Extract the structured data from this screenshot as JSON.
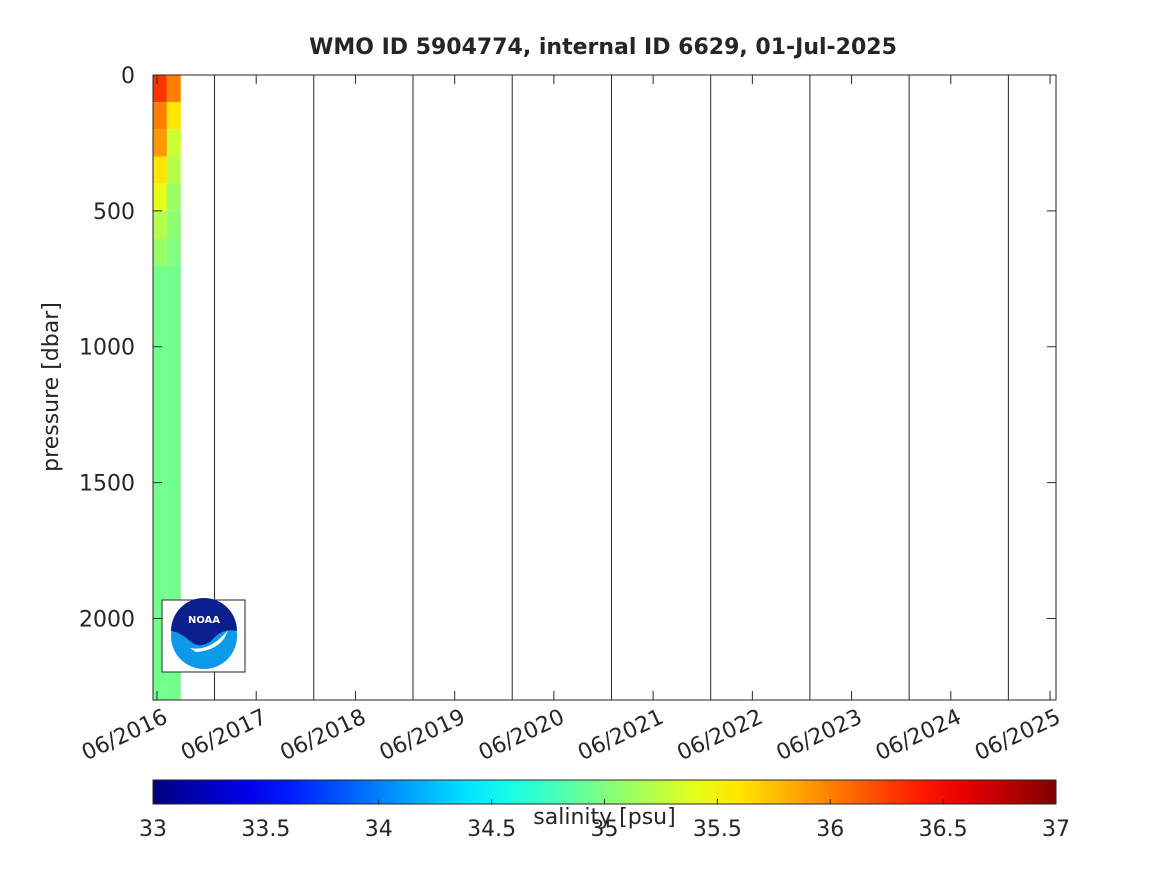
{
  "chart_data": {
    "type": "section",
    "title": "WMO ID 5904774, internal ID 6629, 01-Jul-2025",
    "ylabel": "pressure [dbar]",
    "colorbar_label": "salinity [psu]",
    "logo_text": "NOAA",
    "colormap": "jet",
    "y_reversed": true,
    "xlim": [
      2016.38,
      2025.48
    ],
    "xticks": [
      {
        "value": 2016.42,
        "label": "06/2016"
      },
      {
        "value": 2017.42,
        "label": "06/2017"
      },
      {
        "value": 2018.42,
        "label": "06/2018"
      },
      {
        "value": 2019.42,
        "label": "06/2019"
      },
      {
        "value": 2020.42,
        "label": "06/2020"
      },
      {
        "value": 2021.42,
        "label": "06/2021"
      },
      {
        "value": 2022.42,
        "label": "06/2022"
      },
      {
        "value": 2023.42,
        "label": "06/2023"
      },
      {
        "value": 2024.42,
        "label": "06/2024"
      },
      {
        "value": 2025.42,
        "label": "06/2025"
      }
    ],
    "year_lines": [
      2017,
      2018,
      2019,
      2020,
      2021,
      2022,
      2023,
      2024,
      2025
    ],
    "ylim": [
      0,
      2300
    ],
    "yticks": [
      0,
      500,
      1000,
      1500,
      2000
    ],
    "x_edges": [
      2016.38,
      2016.52,
      2016.66
    ],
    "depth_edges": [
      0,
      100,
      200,
      300,
      400,
      500,
      600,
      700,
      2300
    ],
    "salinity": [
      [
        36.3,
        36.0,
        35.9,
        35.6,
        35.4,
        35.2,
        35.1,
        34.95
      ],
      [
        36.0,
        35.6,
        35.3,
        35.2,
        35.1,
        35.05,
        35.0,
        34.95
      ]
    ],
    "clim": [
      33,
      37
    ],
    "cticks": [
      33,
      33.5,
      34,
      34.5,
      35,
      35.5,
      36,
      36.5,
      37
    ]
  }
}
